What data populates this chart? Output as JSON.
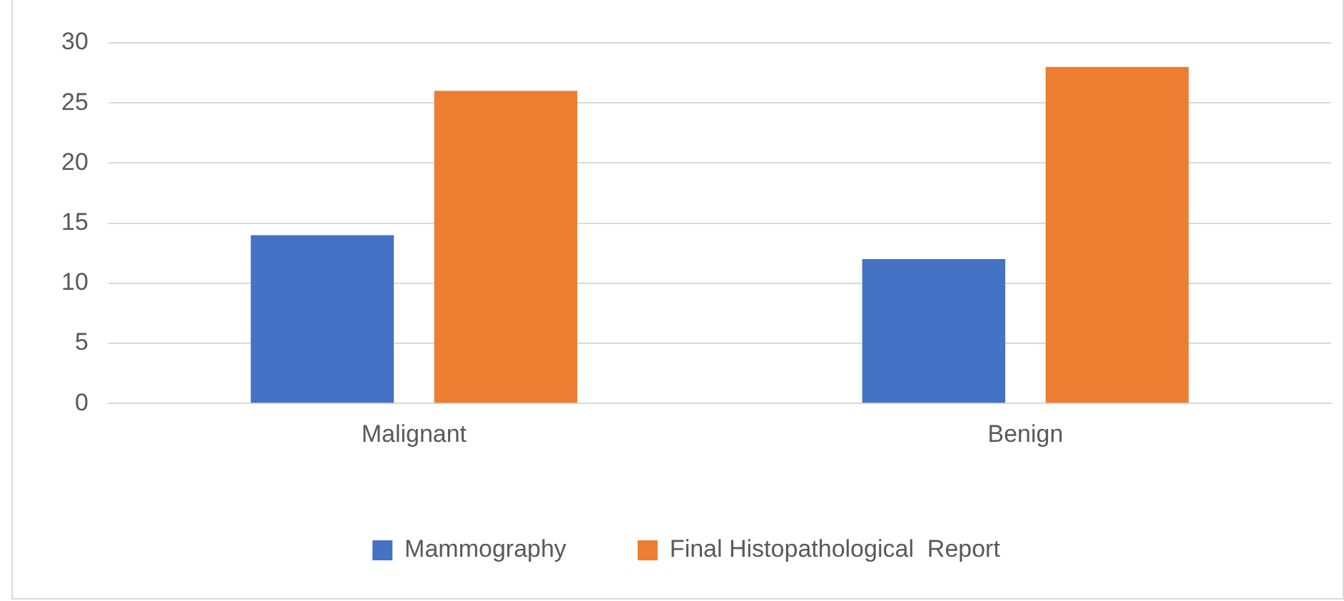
{
  "chart_data": {
    "type": "bar",
    "categories": [
      "Malignant",
      "Benign"
    ],
    "series": [
      {
        "name": "Mammography",
        "color": "#4472c4",
        "values": [
          14,
          12
        ]
      },
      {
        "name": "Final Histopathological  Report",
        "color": "#ed7d31",
        "values": [
          26,
          28
        ]
      }
    ],
    "ylim": [
      0,
      30
    ],
    "yticks": [
      0,
      5,
      10,
      15,
      20,
      25,
      30
    ],
    "grid": "y",
    "legend": "bottom"
  }
}
